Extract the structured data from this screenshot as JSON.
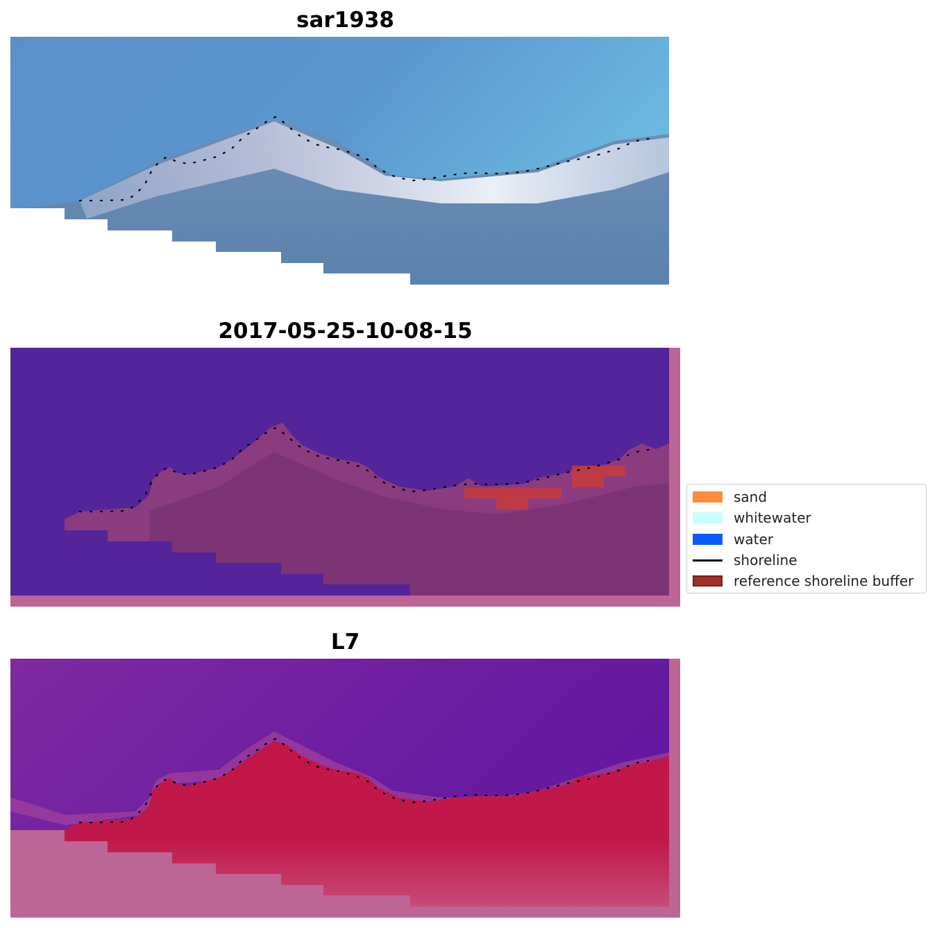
{
  "panels": [
    {
      "title": "sar1938"
    },
    {
      "title": "2017-05-25-10-08-15"
    },
    {
      "title": "L7"
    }
  ],
  "legend": {
    "items": [
      {
        "label": "sand",
        "kind": "patch",
        "color": "#ff8c3a"
      },
      {
        "label": "whitewater",
        "kind": "patch",
        "color": "#c8fffc"
      },
      {
        "label": "water",
        "kind": "patch",
        "color": "#0a5cff"
      },
      {
        "label": "shoreline",
        "kind": "line",
        "color": "#000000"
      },
      {
        "label": "reference shoreline buffer",
        "kind": "patch",
        "color": "#a0302c",
        "edge": "#7a1c1a"
      }
    ]
  },
  "colors": {
    "shoreline": "#000000",
    "nodata": "#bd6595",
    "buffer": "#c83a3a"
  }
}
